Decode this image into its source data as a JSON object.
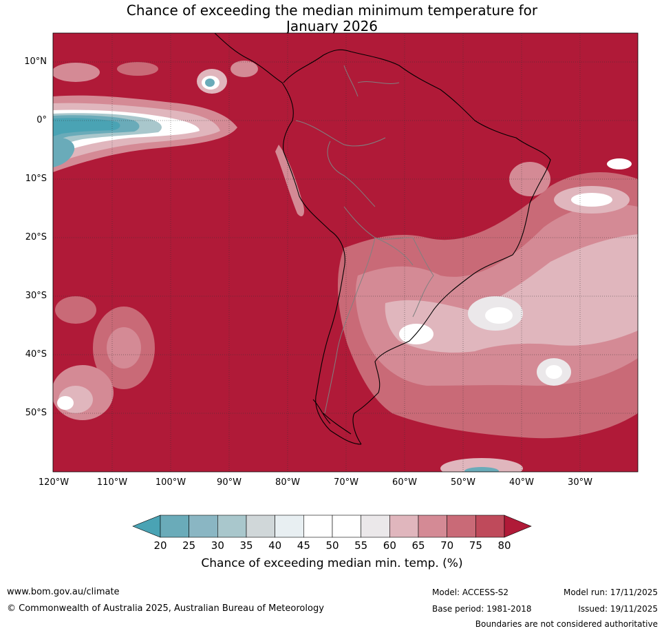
{
  "title_line1": "Chance of exceeding the median minimum temperature for",
  "title_line2": "January 2026",
  "map": {
    "lat_labels": [
      "10°N",
      "0°",
      "10°S",
      "20°S",
      "30°S",
      "40°S",
      "50°S"
    ],
    "lon_labels": [
      "120°W",
      "110°W",
      "100°W",
      "90°W",
      "80°W",
      "70°W",
      "60°W",
      "50°W",
      "40°W",
      "30°W"
    ],
    "background_color": "#b01a38"
  },
  "colorbar": {
    "ticks": [
      "20",
      "25",
      "30",
      "35",
      "40",
      "45",
      "50",
      "55",
      "60",
      "65",
      "70",
      "75",
      "80"
    ],
    "colors": [
      "#4aa3b4",
      "#6aabb9",
      "#8ab6c3",
      "#a9c7cc",
      "#d0d7d9",
      "#e8eff2",
      "#ffffff",
      "#ffffff",
      "#ebe8ea",
      "#e0b6bd",
      "#d48a95",
      "#c96a77",
      "#bf4a5b",
      "#b01a38"
    ],
    "label": "Chance of exceeding median min. temp. (%)"
  },
  "footer": {
    "website": "www.bom.gov.au/climate",
    "copyright": "© Commonwealth of Australia 2025, Australian Bureau of Meteorology",
    "model": "Model: ACCESS-S2",
    "base_period": "Base period: 1981-2018",
    "model_run": "Model run: 17/11/2025",
    "issued": "Issued: 19/11/2025",
    "boundaries_note": "Boundaries are not considered authoritative"
  }
}
